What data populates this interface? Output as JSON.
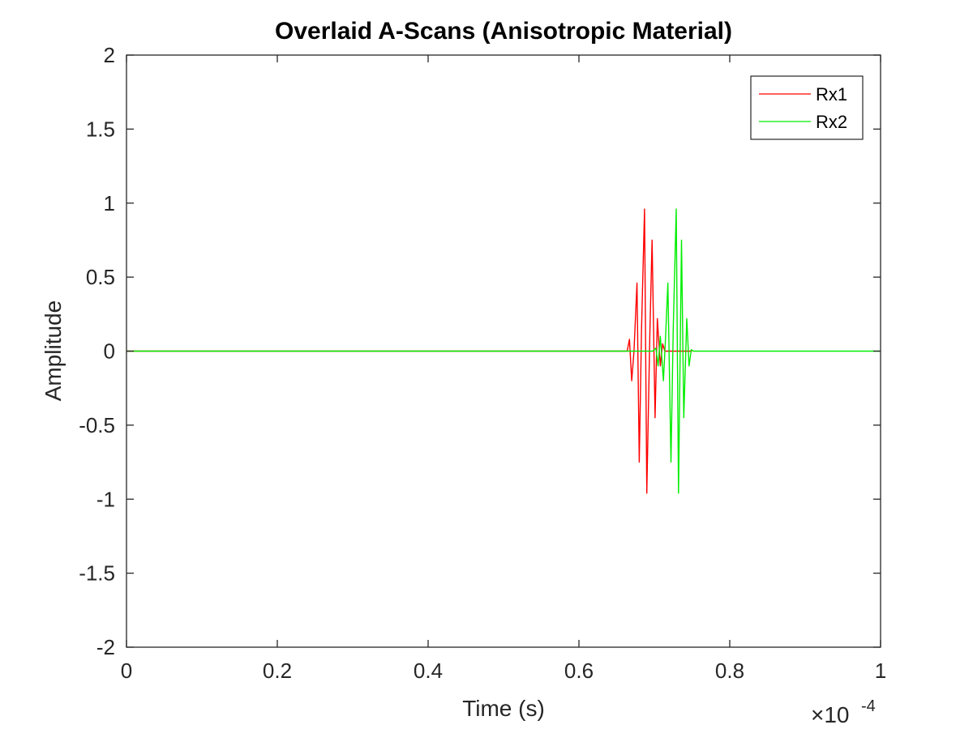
{
  "chart_data": {
    "type": "line",
    "title": "Overlaid A-Scans (Anisotropic Material)",
    "xlabel": "Time (s)",
    "ylabel": "Amplitude",
    "x_multiplier_label": "×10",
    "x_multiplier_exponent": "-4",
    "xlim": [
      0,
      1
    ],
    "ylim": [
      -2,
      2
    ],
    "xticks": [
      0,
      0.2,
      0.4,
      0.6,
      0.8,
      1
    ],
    "xtick_labels": [
      "0",
      "0.2",
      "0.4",
      "0.6",
      "0.8",
      "1"
    ],
    "yticks": [
      2,
      1.5,
      1,
      0.5,
      0,
      -0.5,
      -1,
      -1.5,
      -2
    ],
    "ytick_labels": [
      "2",
      "1.5",
      "1",
      "0.5",
      "0",
      "-0.5",
      "-1",
      "-1.5",
      "-2"
    ],
    "grid": false,
    "legend_position": "top-right",
    "series": [
      {
        "name": "Rx1",
        "color": "#ff0000",
        "x": [
          0,
          0.664,
          0.667,
          0.67,
          0.673,
          0.677,
          0.68,
          0.683,
          0.687,
          0.69,
          0.694,
          0.697,
          0.701,
          0.704,
          0.708,
          0.711,
          0.714,
          0.717,
          0.745,
          0.75
        ],
        "y": [
          0,
          0,
          0.08,
          -0.2,
          0.0,
          0.46,
          -0.75,
          0.15,
          0.96,
          -0.96,
          0.1,
          0.75,
          -0.45,
          0.22,
          -0.1,
          0.05,
          0.0,
          0.0,
          0.0,
          0.0
        ]
      },
      {
        "name": "Rx2",
        "color": "#00ee00",
        "x": [
          0,
          0.698,
          0.702,
          0.705,
          0.708,
          0.712,
          0.715,
          0.718,
          0.722,
          0.725,
          0.729,
          0.732,
          0.736,
          0.739,
          0.743,
          0.746,
          0.749,
          0.752,
          1.0
        ],
        "y": [
          0,
          0,
          0.02,
          -0.1,
          0.1,
          -0.2,
          0.1,
          0.46,
          -0.75,
          0.15,
          0.96,
          -0.96,
          0.75,
          -0.45,
          0.22,
          -0.1,
          0.01,
          0,
          0
        ]
      }
    ]
  }
}
